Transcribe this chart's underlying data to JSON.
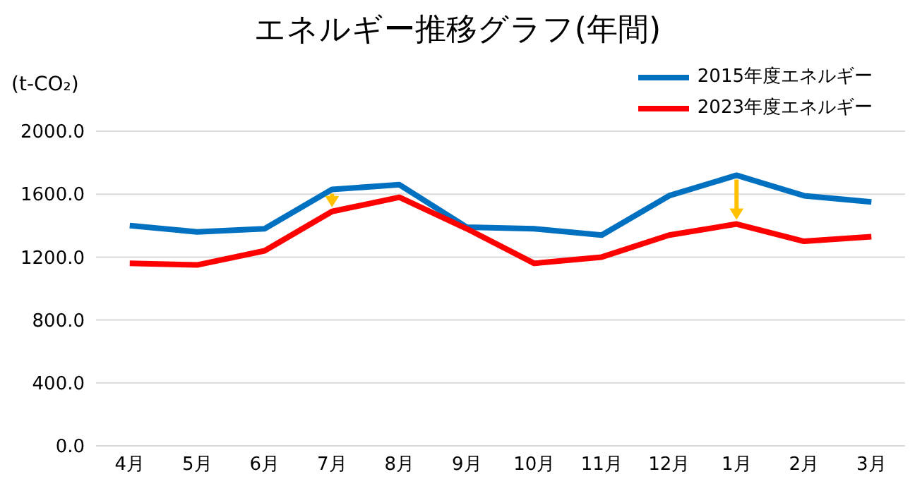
{
  "chart_data": {
    "type": "line",
    "title": "エネルギー推移グラフ(年間)",
    "ylabel": "(t-CO₂)",
    "categories": [
      "4月",
      "5月",
      "6月",
      "7月",
      "8月",
      "9月",
      "10月",
      "11月",
      "12月",
      "1月",
      "2月",
      "3月"
    ],
    "series": [
      {
        "name": "2015年度エネルギー",
        "color": "#0070c0",
        "values": [
          1400,
          1360,
          1380,
          1630,
          1660,
          1390,
          1380,
          1340,
          1590,
          1720,
          1590,
          1550
        ]
      },
      {
        "name": "2023年度エネルギー",
        "color": "#ff0000",
        "values": [
          1160,
          1150,
          1240,
          1490,
          1580,
          1380,
          1160,
          1200,
          1340,
          1410,
          1300,
          1330
        ]
      }
    ],
    "ylim": [
      0,
      2000
    ],
    "yticks": [
      {
        "value": 0,
        "label": "0.0"
      },
      {
        "value": 400,
        "label": "400.0"
      },
      {
        "value": 800,
        "label": "800.0"
      },
      {
        "value": 1200,
        "label": "1200.0"
      },
      {
        "value": 1600,
        "label": "1600.0"
      },
      {
        "value": 2000,
        "label": "2000.0"
      }
    ],
    "grid": "y",
    "legend": "top right",
    "marker": "none",
    "line_style": "solid"
  }
}
